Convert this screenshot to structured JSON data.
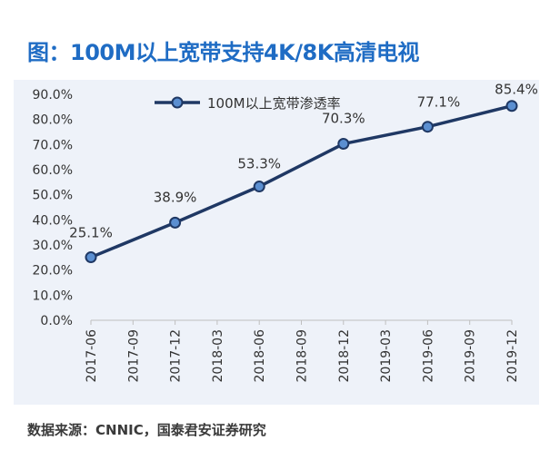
{
  "title": "图：100M以上宽带支持4K/8K高清电视",
  "source": "数据来源：CNNIC，国泰君安证券研究",
  "colors": {
    "title": "#1f6cc4",
    "line": "#1f3864",
    "marker_fill": "#5b8fd1",
    "panel": "#eef2f9"
  },
  "chart_data": {
    "type": "line",
    "title": "图：100M以上宽带支持4K/8K高清电视",
    "xlabel": "",
    "ylabel": "",
    "ylim": [
      0,
      90
    ],
    "y_ticks": [
      0,
      10,
      20,
      30,
      40,
      50,
      60,
      70,
      80,
      90
    ],
    "y_tick_labels": [
      "0.0%",
      "10.0%",
      "20.0%",
      "30.0%",
      "40.0%",
      "50.0%",
      "60.0%",
      "70.0%",
      "80.0%",
      "90.0%"
    ],
    "x_tick_labels": [
      "2017-06",
      "2017-09",
      "2017-12",
      "2018-03",
      "2018-06",
      "2018-09",
      "2018-12",
      "2019-03",
      "2019-06",
      "2019-09",
      "2019-12"
    ],
    "grid": false,
    "legend_position": "top",
    "series": [
      {
        "name": "100M以上宽带渗透率",
        "x": [
          "2017-06",
          "2017-12",
          "2018-06",
          "2018-12",
          "2019-06",
          "2019-12"
        ],
        "values": [
          25.1,
          38.9,
          53.3,
          70.3,
          77.1,
          85.4
        ],
        "labels": [
          "25.1%",
          "38.9%",
          "53.3%",
          "70.3%",
          "77.1%",
          "85.4%"
        ]
      }
    ]
  }
}
